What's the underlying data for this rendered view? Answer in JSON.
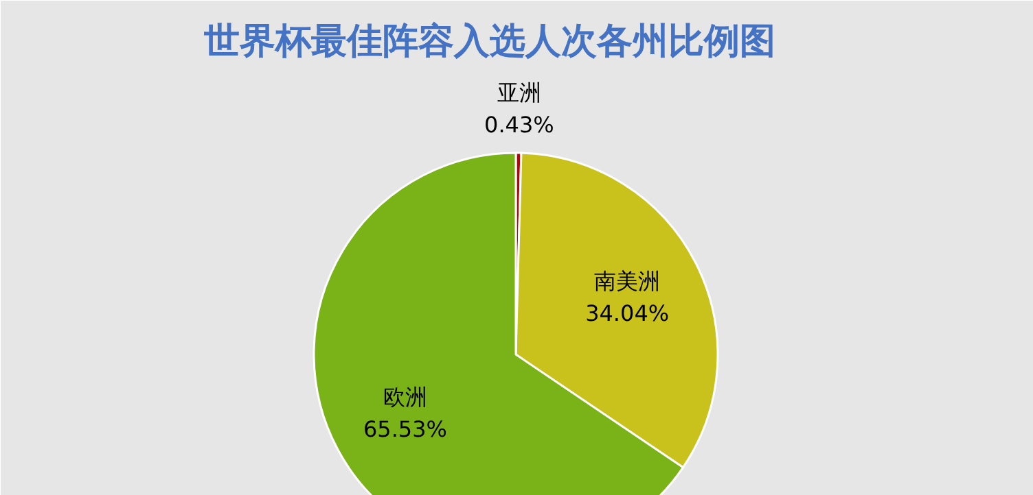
{
  "chart_data": {
    "type": "pie",
    "title": "世界杯最佳阵容入选人次各州比例图",
    "categories": [
      "亚洲",
      "南美洲",
      "欧洲"
    ],
    "values": [
      0.43,
      34.04,
      65.53
    ],
    "colors": [
      "#c00000",
      "#c9c21c",
      "#7ab317"
    ],
    "value_labels": [
      "0.43%",
      "34.04%",
      "65.53%"
    ]
  }
}
